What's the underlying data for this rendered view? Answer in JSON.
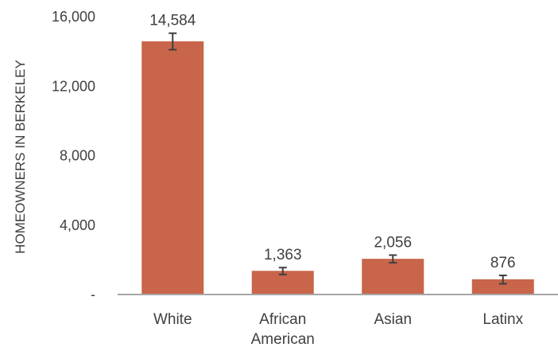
{
  "chart_data": {
    "type": "bar",
    "title": "",
    "xlabel": "",
    "ylabel": "HOMEOWNERS IN BERKELEY",
    "categories": [
      "White",
      "African American",
      "Asian",
      "Latinx"
    ],
    "category_lines": [
      [
        "White"
      ],
      [
        "African",
        "American"
      ],
      [
        "Asian"
      ],
      [
        "Latinx"
      ]
    ],
    "values": [
      14584,
      1363,
      2056,
      876
    ],
    "data_labels": [
      "14,584",
      "1,363",
      "2,056",
      "876"
    ],
    "error_bars": [
      {
        "low": 14100,
        "high": 15050
      },
      {
        "low": 1150,
        "high": 1550
      },
      {
        "low": 1830,
        "high": 2270
      },
      {
        "low": 620,
        "high": 1100
      }
    ],
    "yticks": [
      {
        "value": 0,
        "label": "-"
      },
      {
        "value": 4000,
        "label": "4,000"
      },
      {
        "value": 8000,
        "label": "8,000"
      },
      {
        "value": 12000,
        "label": "12,000"
      },
      {
        "value": 16000,
        "label": "16,000"
      }
    ],
    "ylim": [
      0,
      16000
    ],
    "grid": false,
    "legend": "none",
    "bar_color": "#C8654A",
    "error_color": "#404040",
    "text_color": "#404040",
    "axis_color": "#A6A6A6"
  }
}
